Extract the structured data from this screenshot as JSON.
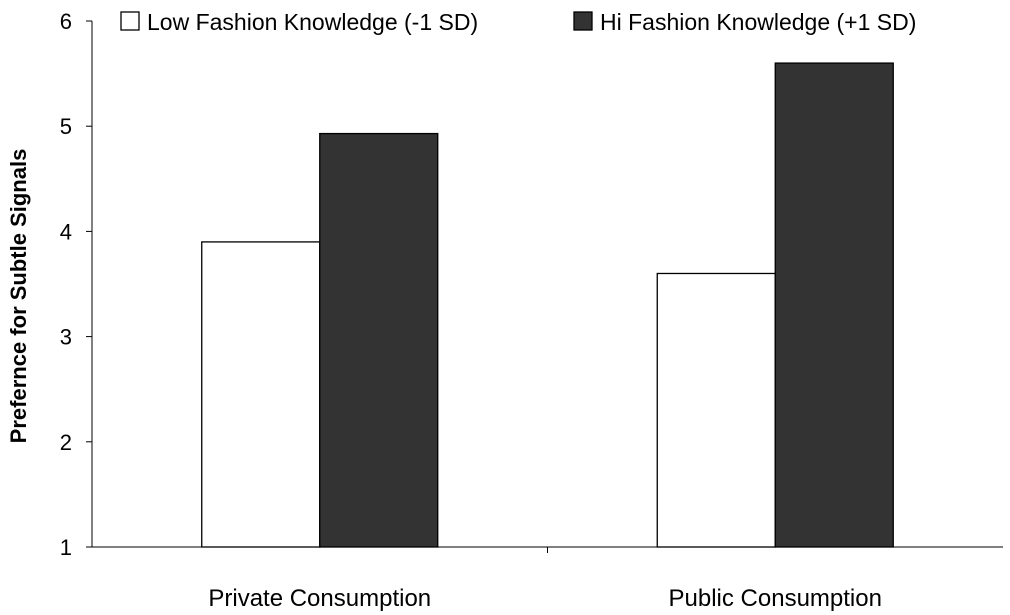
{
  "chart_data": {
    "type": "bar",
    "title": "",
    "xlabel": "",
    "ylabel": "Prefernce for Subtle Signals",
    "ylim": [
      1,
      6
    ],
    "yticks": [
      1,
      2,
      3,
      4,
      5,
      6
    ],
    "grid": false,
    "legend_position": "top",
    "categories": [
      "Private Consumption",
      "Public Consumption"
    ],
    "series": [
      {
        "name": "Low Fashion Knowledge (-1 SD)",
        "values": [
          3.9,
          3.6
        ],
        "color": "#ffffff"
      },
      {
        "name": "Hi Fashion Knowledge (+1 SD)",
        "values": [
          4.93,
          5.6
        ],
        "color": "#333333"
      }
    ]
  }
}
